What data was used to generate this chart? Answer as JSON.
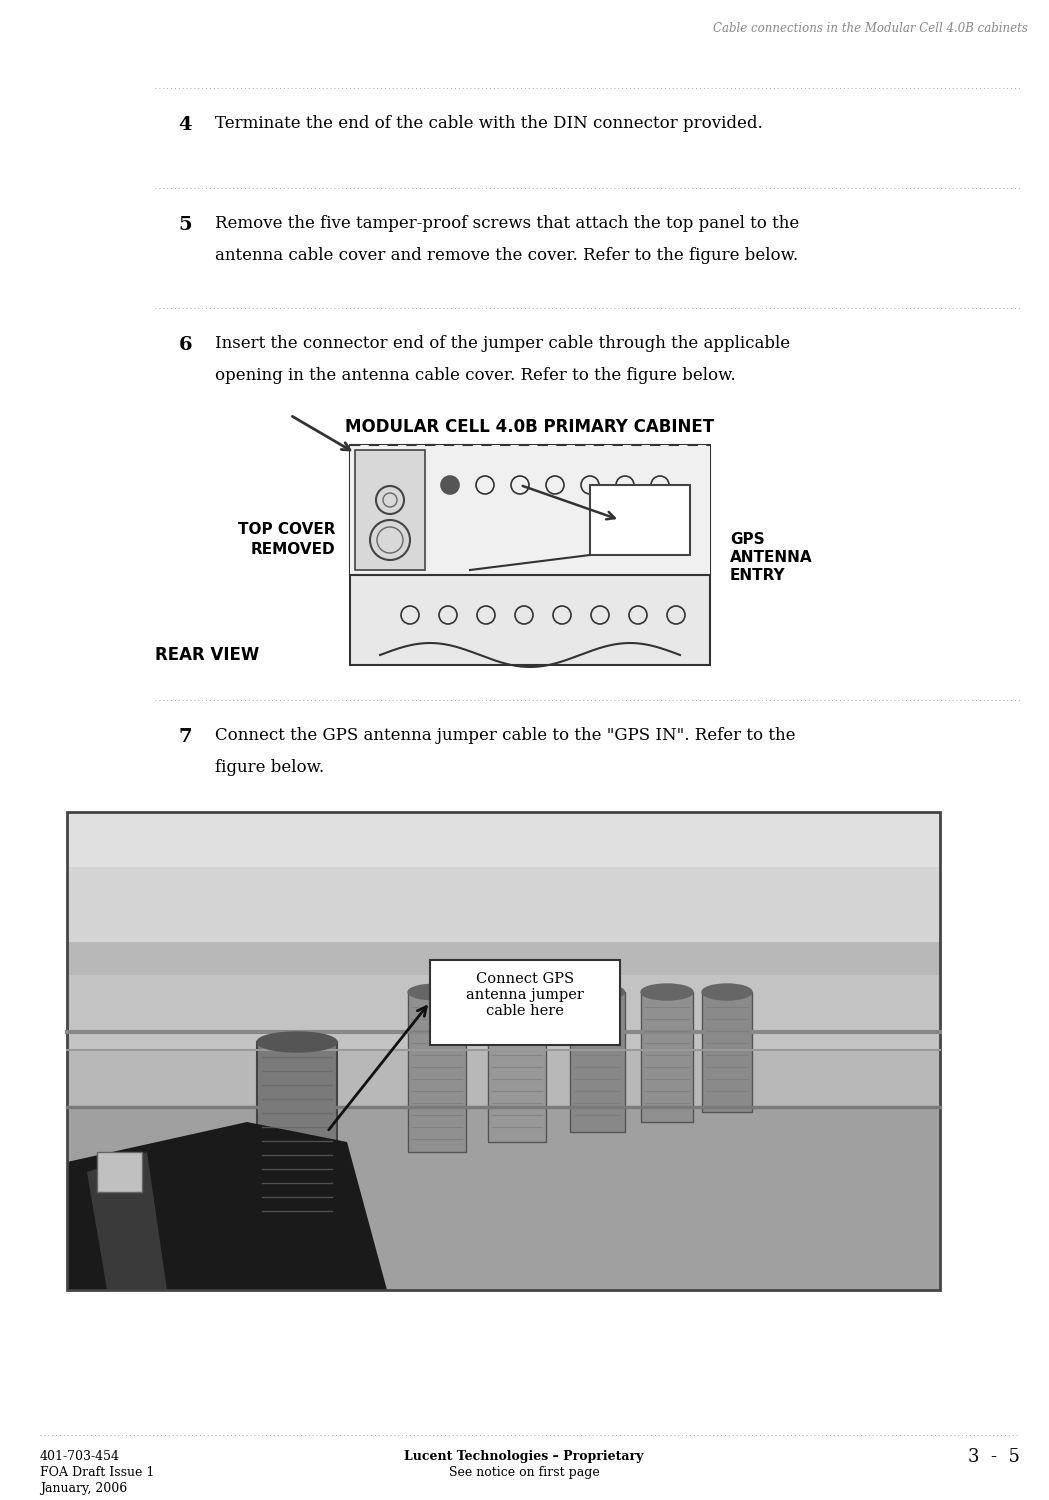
{
  "title_header": "Cable connections in the Modular Cell 4.0B cabinets",
  "footer_left_line1": "401-703-454",
  "footer_left_line2": "FOA Draft Issue 1",
  "footer_left_line3": "January, 2006",
  "footer_center_line1": "Lucent Technologies – Proprietary",
  "footer_center_line2": "See notice on first page",
  "footer_right": "3  -  5",
  "step4_num": "4",
  "step4_text": "Terminate the end of the cable with the DIN connector provided.",
  "step5_num": "5",
  "step5_text_line1": "Remove the five tamper-proof screws that attach the top panel to the",
  "step5_text_line2": "antenna cable cover and remove the cover. Refer to the figure below.",
  "step6_num": "6",
  "step6_text_line1": "Insert the connector end of the jumper cable through the applicable",
  "step6_text_line2": "opening in the antenna cable cover. Refer to the figure below.",
  "diagram_title": "MODULAR CELL 4.0B PRIMARY CABINET",
  "diagram_label_left_line1": "TOP COVER",
  "diagram_label_left_line2": "REMOVED",
  "diagram_label_right_line1": "GPS",
  "diagram_label_right_line2": "ANTENNA",
  "diagram_label_right_line3": "ENTRY",
  "diagram_label_bottom": "REAR VIEW",
  "step7_num": "7",
  "step7_text_line1": "Connect the GPS antenna jumper cable to the \"GPS IN\". Refer to the",
  "step7_text_line2": "figure below.",
  "photo_annotation": "Connect GPS\nantenna jumper\ncable here",
  "bg_color": "#ffffff",
  "text_color": "#000000",
  "header_text_color": "#888888"
}
